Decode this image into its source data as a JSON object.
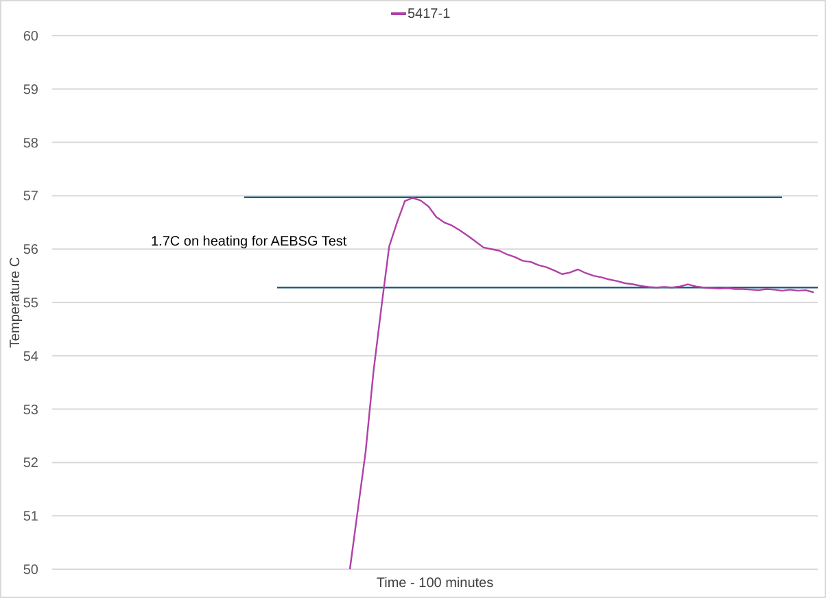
{
  "chart_data": {
    "type": "line",
    "xlabel": "Time - 100 minutes",
    "ylabel": "Temperature C",
    "annotations": [
      "1.7C on heating for AEBSG Test"
    ],
    "categories": [
      null,
      null,
      null,
      null,
      null,
      null,
      null,
      null,
      null,
      null,
      null,
      null,
      null,
      null,
      null,
      null,
      null,
      null,
      null,
      null,
      null,
      null,
      null,
      null,
      null,
      null,
      null,
      null,
      null,
      null,
      null,
      null,
      null,
      null,
      null,
      null,
      null,
      null,
      null,
      null,
      null,
      null,
      null,
      null,
      null,
      null,
      null,
      null,
      null,
      null,
      null,
      null,
      null,
      null,
      null,
      null,
      null,
      null,
      null,
      null
    ],
    "series": [
      {
        "name": "5417-1",
        "color": "#b040a8",
        "values": [
          50.0,
          51.1,
          52.2,
          53.7,
          54.9,
          56.05,
          56.5,
          56.9,
          56.96,
          56.91,
          56.8,
          56.6,
          56.5,
          56.44,
          56.35,
          56.25,
          56.14,
          56.03,
          56.0,
          55.97,
          55.9,
          55.85,
          55.78,
          55.76,
          55.7,
          55.66,
          55.6,
          55.53,
          55.56,
          55.62,
          55.55,
          55.5,
          55.47,
          55.43,
          55.4,
          55.36,
          55.34,
          55.31,
          55.29,
          55.28,
          55.29,
          55.28,
          55.3,
          55.34,
          55.3,
          55.28,
          55.27,
          55.26,
          55.27,
          55.25,
          55.25,
          55.24,
          55.23,
          55.25,
          55.24,
          55.22,
          55.24,
          55.22,
          55.23,
          55.19
        ]
      }
    ],
    "ref_lines": [
      {
        "axis": "y",
        "value": 56.97,
        "color": "#1f5f7a"
      },
      {
        "axis": "y",
        "value": 55.28,
        "color": "#1f5f7a"
      }
    ],
    "ylim": [
      50,
      60
    ],
    "yticks": [
      50,
      51,
      52,
      53,
      54,
      55,
      56,
      57,
      58,
      59,
      60
    ],
    "grid": "y",
    "legend": "top",
    "marker": "none",
    "line_style": "solid"
  }
}
